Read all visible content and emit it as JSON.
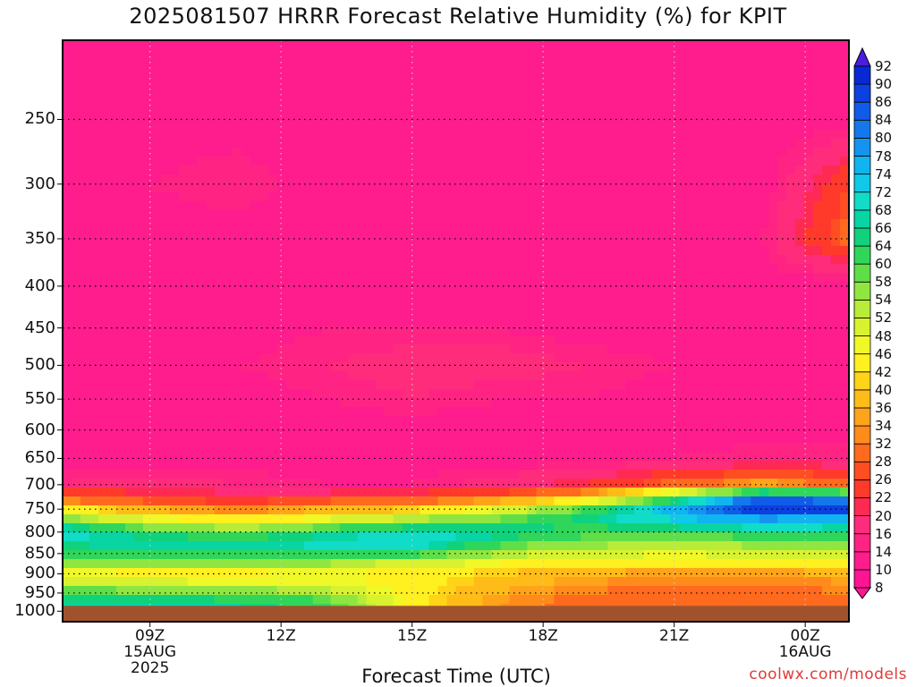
{
  "title": "2025081507 HRRR Forecast Relative Humidity (%) for KPIT",
  "xlabel": "Forecast Time (UTC)",
  "credit": "coolwx.com/models",
  "chart_data": {
    "type": "heatmap",
    "title": "2025081507 HRRR Forecast Relative Humidity (%) for KPIT",
    "xlabel": "Forecast Time (UTC)",
    "ylabel": "",
    "y_scale": "log",
    "y_inverted": true,
    "ylim_hPa": [
      1030,
      200
    ],
    "xlim_hours_utc": [
      7,
      25
    ],
    "y_ticks": [
      250,
      300,
      350,
      400,
      450,
      500,
      550,
      600,
      650,
      700,
      750,
      800,
      850,
      900,
      950,
      1000
    ],
    "x_ticks": [
      {
        "hour": 9,
        "lines": [
          "09Z",
          "15AUG",
          "2025"
        ]
      },
      {
        "hour": 12,
        "lines": [
          "12Z"
        ]
      },
      {
        "hour": 15,
        "lines": [
          "15Z"
        ]
      },
      {
        "hour": 18,
        "lines": [
          "18Z"
        ]
      },
      {
        "hour": 21,
        "lines": [
          "21Z"
        ]
      },
      {
        "hour": 24,
        "lines": [
          "00Z",
          "16AUG"
        ]
      }
    ],
    "grid": true,
    "ground_level_hPa": 985,
    "colorbar_levels": [
      8,
      10,
      14,
      16,
      20,
      22,
      26,
      28,
      32,
      34,
      36,
      40,
      42,
      46,
      48,
      52,
      54,
      58,
      60,
      64,
      66,
      68,
      72,
      74,
      78,
      80,
      84,
      86,
      90,
      92
    ],
    "colorbar_colors": [
      "#ff1493",
      "#ff1c8c",
      "#ff2484",
      "#ff2c7c",
      "#ff2a52",
      "#ff3a2a",
      "#ff4e22",
      "#ff6a1e",
      "#ff8c1a",
      "#ffa41a",
      "#ffbc18",
      "#ffd418",
      "#fff020",
      "#f0f828",
      "#d8f230",
      "#b8ec38",
      "#90e640",
      "#60de48",
      "#30d65a",
      "#10d27c",
      "#08d4a4",
      "#10dcc8",
      "#10c8e8",
      "#10b4f0",
      "#1494f0",
      "#1478ec",
      "#105ce8",
      "#0c40e0",
      "#0828d4",
      "#4a1ee0"
    ],
    "rows_hPa": [
      200,
      250,
      300,
      350,
      400,
      450,
      500,
      550,
      600,
      650,
      700,
      725,
      750,
      775,
      800,
      825,
      850,
      875,
      900,
      925,
      950,
      975
    ],
    "cols_hour": [
      7,
      9,
      11,
      13,
      15,
      17,
      19,
      21,
      23,
      25
    ],
    "values_percent": [
      [
        14,
        14,
        12,
        12,
        10,
        12,
        10,
        10,
        12,
        14
      ],
      [
        12,
        12,
        12,
        10,
        12,
        14,
        10,
        12,
        12,
        12
      ],
      [
        14,
        14,
        16,
        12,
        12,
        12,
        12,
        12,
        12,
        26
      ],
      [
        12,
        12,
        12,
        12,
        10,
        10,
        12,
        12,
        14,
        30
      ],
      [
        12,
        12,
        12,
        12,
        10,
        10,
        10,
        12,
        12,
        12
      ],
      [
        12,
        12,
        12,
        14,
        14,
        14,
        12,
        12,
        12,
        12
      ],
      [
        14,
        12,
        14,
        16,
        18,
        18,
        16,
        14,
        12,
        12
      ],
      [
        12,
        12,
        12,
        14,
        16,
        14,
        14,
        12,
        12,
        12
      ],
      [
        12,
        10,
        12,
        12,
        12,
        12,
        12,
        12,
        12,
        12
      ],
      [
        12,
        12,
        12,
        12,
        12,
        12,
        12,
        14,
        16,
        16
      ],
      [
        16,
        18,
        16,
        14,
        14,
        18,
        22,
        30,
        36,
        30
      ],
      [
        28,
        24,
        22,
        24,
        26,
        30,
        40,
        60,
        84,
        80
      ],
      [
        44,
        36,
        32,
        36,
        40,
        48,
        60,
        76,
        90,
        88
      ],
      [
        58,
        50,
        44,
        50,
        56,
        60,
        66,
        72,
        76,
        74
      ],
      [
        72,
        62,
        58,
        64,
        70,
        68,
        62,
        62,
        64,
        64
      ],
      [
        66,
        70,
        68,
        70,
        72,
        62,
        56,
        54,
        56,
        58
      ],
      [
        62,
        62,
        62,
        64,
        62,
        54,
        50,
        48,
        50,
        50
      ],
      [
        54,
        54,
        54,
        54,
        50,
        46,
        42,
        42,
        42,
        42
      ],
      [
        46,
        44,
        44,
        46,
        44,
        40,
        36,
        34,
        34,
        36
      ],
      [
        52,
        50,
        48,
        48,
        44,
        38,
        34,
        32,
        32,
        34
      ],
      [
        62,
        60,
        58,
        54,
        44,
        36,
        32,
        30,
        30,
        32
      ],
      [
        66,
        68,
        66,
        62,
        44,
        34,
        30,
        28,
        28,
        30
      ]
    ],
    "ground_color": "#a0522d",
    "grid_color": "#c8c8c8"
  }
}
